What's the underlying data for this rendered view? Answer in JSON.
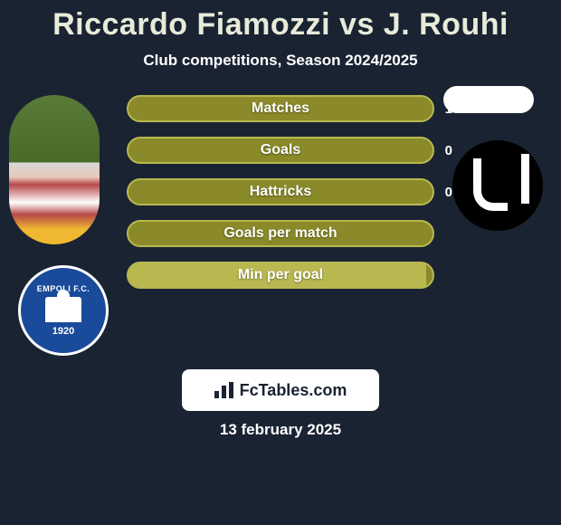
{
  "title": "Riccardo Fiamozzi vs J. Rouhi",
  "subtitle": "Club competitions, Season 2024/2025",
  "date": "13 february 2025",
  "brand": "FcTables.com",
  "left_club": {
    "top_text": "EMPOLI F.C.",
    "year": "1920"
  },
  "bar_colors": {
    "fill": "#b8b850",
    "track": "#8a8a2a",
    "border": "#b8b850"
  },
  "background_color": "#1a2332",
  "title_color": "#e8ebd9",
  "stats": [
    {
      "label": "Matches",
      "left_pct": 0,
      "right_value": "1"
    },
    {
      "label": "Goals",
      "left_pct": 0,
      "right_value": "0"
    },
    {
      "label": "Hattricks",
      "left_pct": 0,
      "right_value": "0"
    },
    {
      "label": "Goals per match",
      "left_pct": 0,
      "right_value": ""
    },
    {
      "label": "Min per goal",
      "left_pct": 98,
      "right_value": ""
    }
  ]
}
